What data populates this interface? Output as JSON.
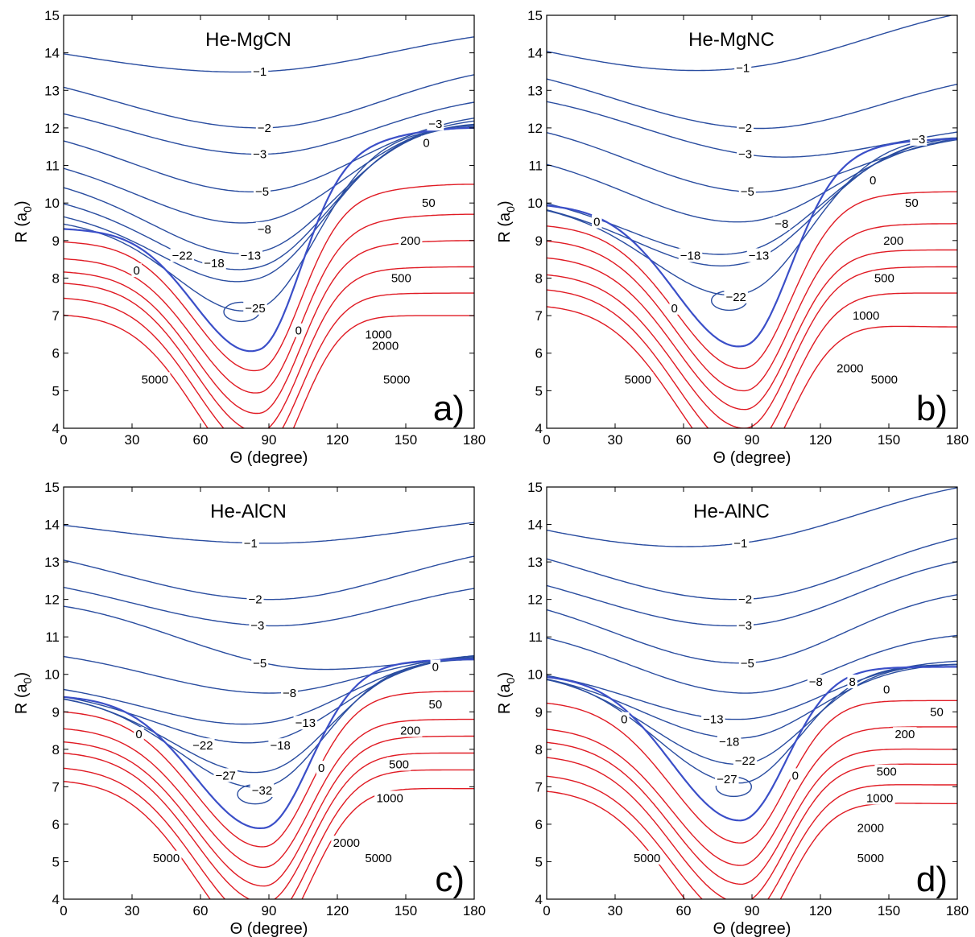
{
  "colors": {
    "negative": "#2a4da0",
    "zero": "#3b4fc8",
    "positive": "#e01b24",
    "axis": "#000000"
  },
  "chart_data": [
    {
      "type": "contour",
      "title": "He-MgCN",
      "panel_letter": "a)",
      "xlabel": "Θ (degree)",
      "ylabel_main": "R (a",
      "ylabel_sub": "0",
      "ylabel_end": ")",
      "xlim": [
        0,
        180
      ],
      "ylim": [
        4,
        15
      ],
      "xticks": [
        "0",
        "30",
        "60",
        "90",
        "120",
        "150",
        "180"
      ],
      "yticks": [
        "4",
        "5",
        "6",
        "7",
        "8",
        "9",
        "10",
        "11",
        "12",
        "13",
        "14",
        "15"
      ],
      "well": {
        "theta": 86,
        "r": 6.1,
        "r0": 9.3,
        "r180": 12.3,
        "width": 20
      },
      "min_contour": {
        "theta": 78,
        "r": 7.1
      },
      "negative_contours": [
        {
          "level": -1,
          "label": "−1",
          "r0": 14.55,
          "rmin": 13.5,
          "r180": 14.8
        },
        {
          "level": -2,
          "label": "−2",
          "r0": 13.8,
          "rmin": 12.0,
          "r180": 13.8
        },
        {
          "level": -3,
          "label": "−3",
          "r0": 12.95,
          "rmin": 11.3,
          "r180": 12.95
        },
        {
          "level": -5,
          "label": "−5",
          "r0": 12.2,
          "rmin": 10.3,
          "r180": 12.45
        },
        {
          "level": -8,
          "label": "−8",
          "r0": 11.4,
          "rmin": 9.5,
          "r180": 12.3
        },
        {
          "level": -13,
          "label": "−13",
          "r0": 10.8,
          "rmin": 8.7,
          "r180": 12.15
        },
        {
          "level": -18,
          "label": "−18",
          "r0": 10.3,
          "rmin": 8.3,
          "r180": 12.1
        },
        {
          "level": -22,
          "label": "−22",
          "r0": 9.9,
          "rmin": 8.0,
          "r180": 12.05
        },
        {
          "level": -25,
          "label": "−25",
          "r0": 9.6,
          "rmin": 7.2,
          "r180": 12.0
        }
      ],
      "contour_labels": [
        {
          "text": "−1",
          "theta": 86,
          "r": 13.5
        },
        {
          "text": "−2",
          "theta": 88,
          "r": 12.0
        },
        {
          "text": "−3",
          "theta": 86,
          "r": 11.3
        },
        {
          "text": "−5",
          "theta": 87,
          "r": 10.3
        },
        {
          "text": "−8",
          "theta": 88,
          "r": 9.3
        },
        {
          "text": "−13",
          "theta": 82,
          "r": 8.6
        },
        {
          "text": "−18",
          "theta": 66,
          "r": 8.4
        },
        {
          "text": "−22",
          "theta": 52,
          "r": 8.6
        },
        {
          "text": "−25",
          "theta": 84,
          "r": 7.2
        },
        {
          "text": "−3",
          "theta": 163,
          "r": 12.1
        },
        {
          "text": "0",
          "theta": 159,
          "r": 11.6
        },
        {
          "text": "0",
          "theta": 32,
          "r": 8.2
        },
        {
          "text": "0",
          "theta": 103,
          "r": 6.6
        },
        {
          "text": "50",
          "theta": 160,
          "r": 10.0
        },
        {
          "text": "200",
          "theta": 152,
          "r": 9.0
        },
        {
          "text": "500",
          "theta": 148,
          "r": 8.0
        },
        {
          "text": "1000",
          "theta": 138,
          "r": 6.5
        },
        {
          "text": "2000",
          "theta": 141,
          "r": 6.2
        },
        {
          "text": "5000",
          "theta": 146,
          "r": 5.3
        },
        {
          "text": "5000",
          "theta": 40,
          "r": 5.3
        }
      ],
      "positive_contours": [
        {
          "level": 0,
          "label": "0",
          "r0": 9.35,
          "rmin": 6.1,
          "r180": 12.0
        },
        {
          "level": 50,
          "label": "50",
          "r0": 9.0,
          "rmin": 5.55,
          "r180": 10.5
        },
        {
          "level": 200,
          "label": "200",
          "r0": 8.55,
          "rmin": 4.95,
          "r180": 9.7
        },
        {
          "level": 500,
          "label": "500",
          "r0": 8.2,
          "rmin": 4.4,
          "r180": 9.0
        },
        {
          "level": 1000,
          "label": "1000",
          "r0": 7.9,
          "rmin": 3.9,
          "r180": 8.3
        },
        {
          "level": 2000,
          "label": "2000",
          "r0": 7.5,
          "rmin": 3.4,
          "r180": 7.6
        },
        {
          "level": 5000,
          "label": "5000",
          "r0": 7.05,
          "rmin": 2.8,
          "r180": 7.0
        }
      ]
    },
    {
      "type": "contour",
      "title": "He-MgNC",
      "panel_letter": "b)",
      "xlabel": "Θ (degree)",
      "ylabel_main": "R (a",
      "ylabel_sub": "0",
      "ylabel_end": ")",
      "xlim": [
        0,
        180
      ],
      "ylim": [
        4,
        15
      ],
      "xticks": [
        "0",
        "30",
        "60",
        "90",
        "120",
        "150",
        "180"
      ],
      "yticks": [
        "4",
        "5",
        "6",
        "7",
        "8",
        "9",
        "10",
        "11",
        "12",
        "13",
        "14",
        "15"
      ],
      "well": {
        "theta": 87,
        "r": 6.2,
        "r0": 10.0,
        "r180": 11.8,
        "width": 22
      },
      "min_contour": {
        "theta": 80,
        "r": 7.4
      },
      "negative_contours": [
        {
          "level": -1,
          "label": "−1",
          "r0": 14.85,
          "rmin": 13.6,
          "r180": 15.6
        },
        {
          "level": -2,
          "label": "−2",
          "r0": 14.05,
          "rmin": 12.0,
          "r180": 13.6
        },
        {
          "level": -3,
          "label": "−3",
          "r0": 13.2,
          "rmin": 11.3,
          "r180": 12.15
        },
        {
          "level": -5,
          "label": "−5",
          "r0": 12.4,
          "rmin": 10.3,
          "r180": 11.9
        },
        {
          "level": -8,
          "label": "−8",
          "r0": 11.5,
          "rmin": 9.5,
          "r180": 11.85
        },
        {
          "level": -13,
          "label": "−13",
          "r0": 10.35,
          "rmin": 8.7,
          "r180": 11.8
        },
        {
          "level": -18,
          "label": "−18",
          "r0": 10.15,
          "rmin": 8.4,
          "r180": 11.78
        },
        {
          "level": -22,
          "label": "−22",
          "r0": 10.05,
          "rmin": 7.6,
          "r180": 11.75
        }
      ],
      "contour_labels": [
        {
          "text": "−1",
          "theta": 86,
          "r": 13.6
        },
        {
          "text": "−2",
          "theta": 87,
          "r": 12.0
        },
        {
          "text": "−3",
          "theta": 87,
          "r": 11.3
        },
        {
          "text": "−5",
          "theta": 88,
          "r": 10.3
        },
        {
          "text": "−8",
          "theta": 103,
          "r": 9.45
        },
        {
          "text": "−13",
          "theta": 93,
          "r": 8.6
        },
        {
          "text": "−18",
          "theta": 63,
          "r": 8.6
        },
        {
          "text": "−22",
          "theta": 83,
          "r": 7.5
        },
        {
          "text": "−3",
          "theta": 163,
          "r": 11.7
        },
        {
          "text": "0",
          "theta": 143,
          "r": 10.6
        },
        {
          "text": "0",
          "theta": 22,
          "r": 9.5
        },
        {
          "text": "0",
          "theta": 56,
          "r": 7.2
        },
        {
          "text": "50",
          "theta": 160,
          "r": 10.0
        },
        {
          "text": "200",
          "theta": 152,
          "r": 9.0
        },
        {
          "text": "500",
          "theta": 148,
          "r": 8.0
        },
        {
          "text": "1000",
          "theta": 140,
          "r": 7.0
        },
        {
          "text": "2000",
          "theta": 133,
          "r": 5.6
        },
        {
          "text": "5000",
          "theta": 148,
          "r": 5.3
        },
        {
          "text": "5000",
          "theta": 40,
          "r": 5.3
        }
      ],
      "positive_contours": [
        {
          "level": 0,
          "label": "0",
          "r0": 10.0,
          "rmin": 6.2,
          "r180": 11.7
        },
        {
          "level": 50,
          "label": "50",
          "r0": 9.45,
          "rmin": 5.6,
          "r180": 10.3
        },
        {
          "level": 200,
          "label": "200",
          "r0": 9.05,
          "rmin": 5.0,
          "r180": 9.45
        },
        {
          "level": 500,
          "label": "500",
          "r0": 8.6,
          "rmin": 4.5,
          "r180": 8.75
        },
        {
          "level": 1000,
          "label": "1000",
          "r0": 8.15,
          "rmin": 4.0,
          "r180": 8.3
        },
        {
          "level": 2000,
          "label": "2000",
          "r0": 7.75,
          "rmin": 3.4,
          "r180": 7.6
        },
        {
          "level": 5000,
          "label": "5000",
          "r0": 7.3,
          "rmin": 2.8,
          "r180": 6.7
        }
      ]
    },
    {
      "type": "contour",
      "title": "He-AlCN",
      "panel_letter": "c)",
      "xlabel": "Θ (degree)",
      "ylabel_main": "R (a",
      "ylabel_sub": "0",
      "ylabel_end": ")",
      "xlim": [
        0,
        180
      ],
      "ylim": [
        4,
        15
      ],
      "xticks": [
        "0",
        "30",
        "60",
        "90",
        "120",
        "150",
        "180"
      ],
      "yticks": [
        "4",
        "5",
        "6",
        "7",
        "8",
        "9",
        "10",
        "11",
        "12",
        "13",
        "14",
        "15"
      ],
      "well": {
        "theta": 88,
        "r": 5.9,
        "r0": 9.4,
        "r180": 10.4,
        "width": 22
      },
      "min_contour": {
        "theta": 84,
        "r": 6.8
      },
      "negative_contours": [
        {
          "level": -1,
          "label": "−1",
          "r0": 14.45,
          "rmin": 13.5,
          "r180": 14.4
        },
        {
          "level": -2,
          "label": "−2",
          "r0": 13.75,
          "rmin": 12.0,
          "r180": 13.6
        },
        {
          "level": -3,
          "label": "−3",
          "r0": 12.85,
          "rmin": 11.3,
          "r180": 12.6
        },
        {
          "level": -5,
          "label": "−5",
          "r0": 12.15,
          "rmin": 10.3,
          "r180": 10.65
        },
        {
          "level": -8,
          "label": "−8",
          "r0": 10.75,
          "rmin": 9.5,
          "r180": 10.6
        },
        {
          "level": -13,
          "label": "−13",
          "r0": 9.85,
          "rmin": 8.7,
          "r180": 10.55
        },
        {
          "level": -18,
          "label": "−18",
          "r0": 9.65,
          "rmin": 8.2,
          "r180": 10.5
        },
        {
          "level": -22,
          "label": "−22",
          "r0": 9.55,
          "rmin": 7.4,
          "r180": 10.45
        },
        {
          "level": -27,
          "label": "−27",
          "r0": 9.5,
          "rmin": 7.0,
          "r180": 10.4
        }
      ],
      "contour_labels": [
        {
          "text": "−1",
          "theta": 82,
          "r": 13.5
        },
        {
          "text": "−2",
          "theta": 84,
          "r": 12.0
        },
        {
          "text": "−3",
          "theta": 85,
          "r": 11.3
        },
        {
          "text": "−5",
          "theta": 86,
          "r": 10.3
        },
        {
          "text": "−8",
          "theta": 99,
          "r": 9.5
        },
        {
          "text": "−13",
          "theta": 106,
          "r": 8.7
        },
        {
          "text": "−18",
          "theta": 95,
          "r": 8.1
        },
        {
          "text": "−22",
          "theta": 61,
          "r": 8.1
        },
        {
          "text": "−27",
          "theta": 71,
          "r": 7.3
        },
        {
          "text": "−32",
          "theta": 87,
          "r": 6.9
        },
        {
          "text": "0",
          "theta": 163,
          "r": 10.2
        },
        {
          "text": "0",
          "theta": 33,
          "r": 8.4
        },
        {
          "text": "0",
          "theta": 113,
          "r": 7.5
        },
        {
          "text": "50",
          "theta": 163,
          "r": 9.2
        },
        {
          "text": "200",
          "theta": 152,
          "r": 8.5
        },
        {
          "text": "500",
          "theta": 147,
          "r": 7.6
        },
        {
          "text": "1000",
          "theta": 143,
          "r": 6.7
        },
        {
          "text": "2000",
          "theta": 124,
          "r": 5.5
        },
        {
          "text": "5000",
          "theta": 138,
          "r": 5.1
        },
        {
          "text": "5000",
          "theta": 45,
          "r": 5.1
        }
      ],
      "positive_contours": [
        {
          "level": 0,
          "label": "0",
          "r0": 9.45,
          "rmin": 5.9,
          "r180": 10.4
        },
        {
          "level": 50,
          "label": "50",
          "r0": 9.05,
          "rmin": 5.4,
          "r180": 9.55
        },
        {
          "level": 200,
          "label": "200",
          "r0": 8.6,
          "rmin": 4.85,
          "r180": 8.8
        },
        {
          "level": 500,
          "label": "500",
          "r0": 8.25,
          "rmin": 4.35,
          "r180": 8.35
        },
        {
          "level": 1000,
          "label": "1000",
          "r0": 7.95,
          "rmin": 3.9,
          "r180": 7.9
        },
        {
          "level": 2000,
          "label": "2000",
          "r0": 7.55,
          "rmin": 3.35,
          "r180": 7.45
        },
        {
          "level": 5000,
          "label": "5000",
          "r0": 7.2,
          "rmin": 2.8,
          "r180": 6.95
        }
      ]
    },
    {
      "type": "contour",
      "title": "He-AlNC",
      "panel_letter": "d)",
      "xlabel": "Θ (degree)",
      "ylabel_main": "R (a",
      "ylabel_sub": "0",
      "ylabel_end": ")",
      "xlim": [
        0,
        180
      ],
      "ylim": [
        4,
        15
      ],
      "xticks": [
        "0",
        "30",
        "60",
        "90",
        "120",
        "150",
        "180"
      ],
      "yticks": [
        "4",
        "5",
        "6",
        "7",
        "8",
        "9",
        "10",
        "11",
        "12",
        "13",
        "14",
        "15"
      ],
      "well": {
        "theta": 85,
        "r": 6.1,
        "r0": 10.0,
        "r180": 10.25,
        "width": 22
      },
      "min_contour": {
        "theta": 82,
        "r": 7.0
      },
      "negative_contours": [
        {
          "level": -1,
          "label": "−1",
          "r0": 14.65,
          "rmin": 13.5,
          "r180": 15.5
        },
        {
          "level": -2,
          "label": "−2",
          "r0": 13.95,
          "rmin": 12.0,
          "r180": 14.1
        },
        {
          "level": -3,
          "label": "−3",
          "r0": 13.1,
          "rmin": 11.3,
          "r180": 13.35
        },
        {
          "level": -5,
          "label": "−5",
          "r0": 12.35,
          "rmin": 10.3,
          "r180": 12.35
        },
        {
          "level": -8,
          "label": "−8",
          "r0": 11.4,
          "rmin": 9.5,
          "r180": 11.15
        },
        {
          "level": -13,
          "label": "−13",
          "r0": 10.25,
          "rmin": 8.8,
          "r180": 10.4
        },
        {
          "level": -18,
          "label": "−18",
          "r0": 10.15,
          "rmin": 8.3,
          "r180": 10.3
        },
        {
          "level": -22,
          "label": "−22",
          "r0": 10.1,
          "rmin": 7.6,
          "r180": 10.28
        },
        {
          "level": -27,
          "label": "−27",
          "r0": 10.05,
          "rmin": 7.1,
          "r180": 10.26
        }
      ],
      "contour_labels": [
        {
          "text": "−1",
          "theta": 85,
          "r": 13.5
        },
        {
          "text": "−2",
          "theta": 87,
          "r": 12.0
        },
        {
          "text": "−3",
          "theta": 87,
          "r": 11.3
        },
        {
          "text": "−5",
          "theta": 88,
          "r": 10.3
        },
        {
          "text": "−8",
          "theta": 118,
          "r": 9.8
        },
        {
          "text": "−13",
          "theta": 73,
          "r": 8.8
        },
        {
          "text": "−18",
          "theta": 80,
          "r": 8.2
        },
        {
          "text": "−22",
          "theta": 87,
          "r": 7.7
        },
        {
          "text": "−27",
          "theta": 79,
          "r": 7.2
        },
        {
          "text": "8",
          "theta": 134,
          "r": 9.8
        },
        {
          "text": "0",
          "theta": 149,
          "r": 9.6
        },
        {
          "text": "0",
          "theta": 34,
          "r": 8.8
        },
        {
          "text": "0",
          "theta": 109,
          "r": 7.3
        },
        {
          "text": "50",
          "theta": 171,
          "r": 9.0
        },
        {
          "text": "200",
          "theta": 157,
          "r": 8.4
        },
        {
          "text": "500",
          "theta": 149,
          "r": 7.4
        },
        {
          "text": "1000",
          "theta": 146,
          "r": 6.7
        },
        {
          "text": "2000",
          "theta": 142,
          "r": 5.9
        },
        {
          "text": "5000",
          "theta": 142,
          "r": 5.1
        },
        {
          "text": "5000",
          "theta": 44,
          "r": 5.1
        }
      ],
      "positive_contours": [
        {
          "level": 0,
          "label": "0",
          "r0": 10.0,
          "rmin": 6.1,
          "r180": 10.2
        },
        {
          "level": 50,
          "label": "50",
          "r0": 9.3,
          "rmin": 5.5,
          "r180": 9.3
        },
        {
          "level": 200,
          "label": "200",
          "r0": 8.6,
          "rmin": 4.9,
          "r180": 8.6
        },
        {
          "level": 500,
          "label": "500",
          "r0": 8.25,
          "rmin": 4.4,
          "r180": 8.0
        },
        {
          "level": 1000,
          "label": "1000",
          "r0": 7.85,
          "rmin": 3.9,
          "r180": 7.6
        },
        {
          "level": 2000,
          "label": "2000",
          "r0": 7.35,
          "rmin": 3.4,
          "r180": 7.05
        },
        {
          "level": 5000,
          "label": "5000",
          "r0": 6.95,
          "rmin": 2.8,
          "r180": 6.55
        }
      ]
    }
  ]
}
